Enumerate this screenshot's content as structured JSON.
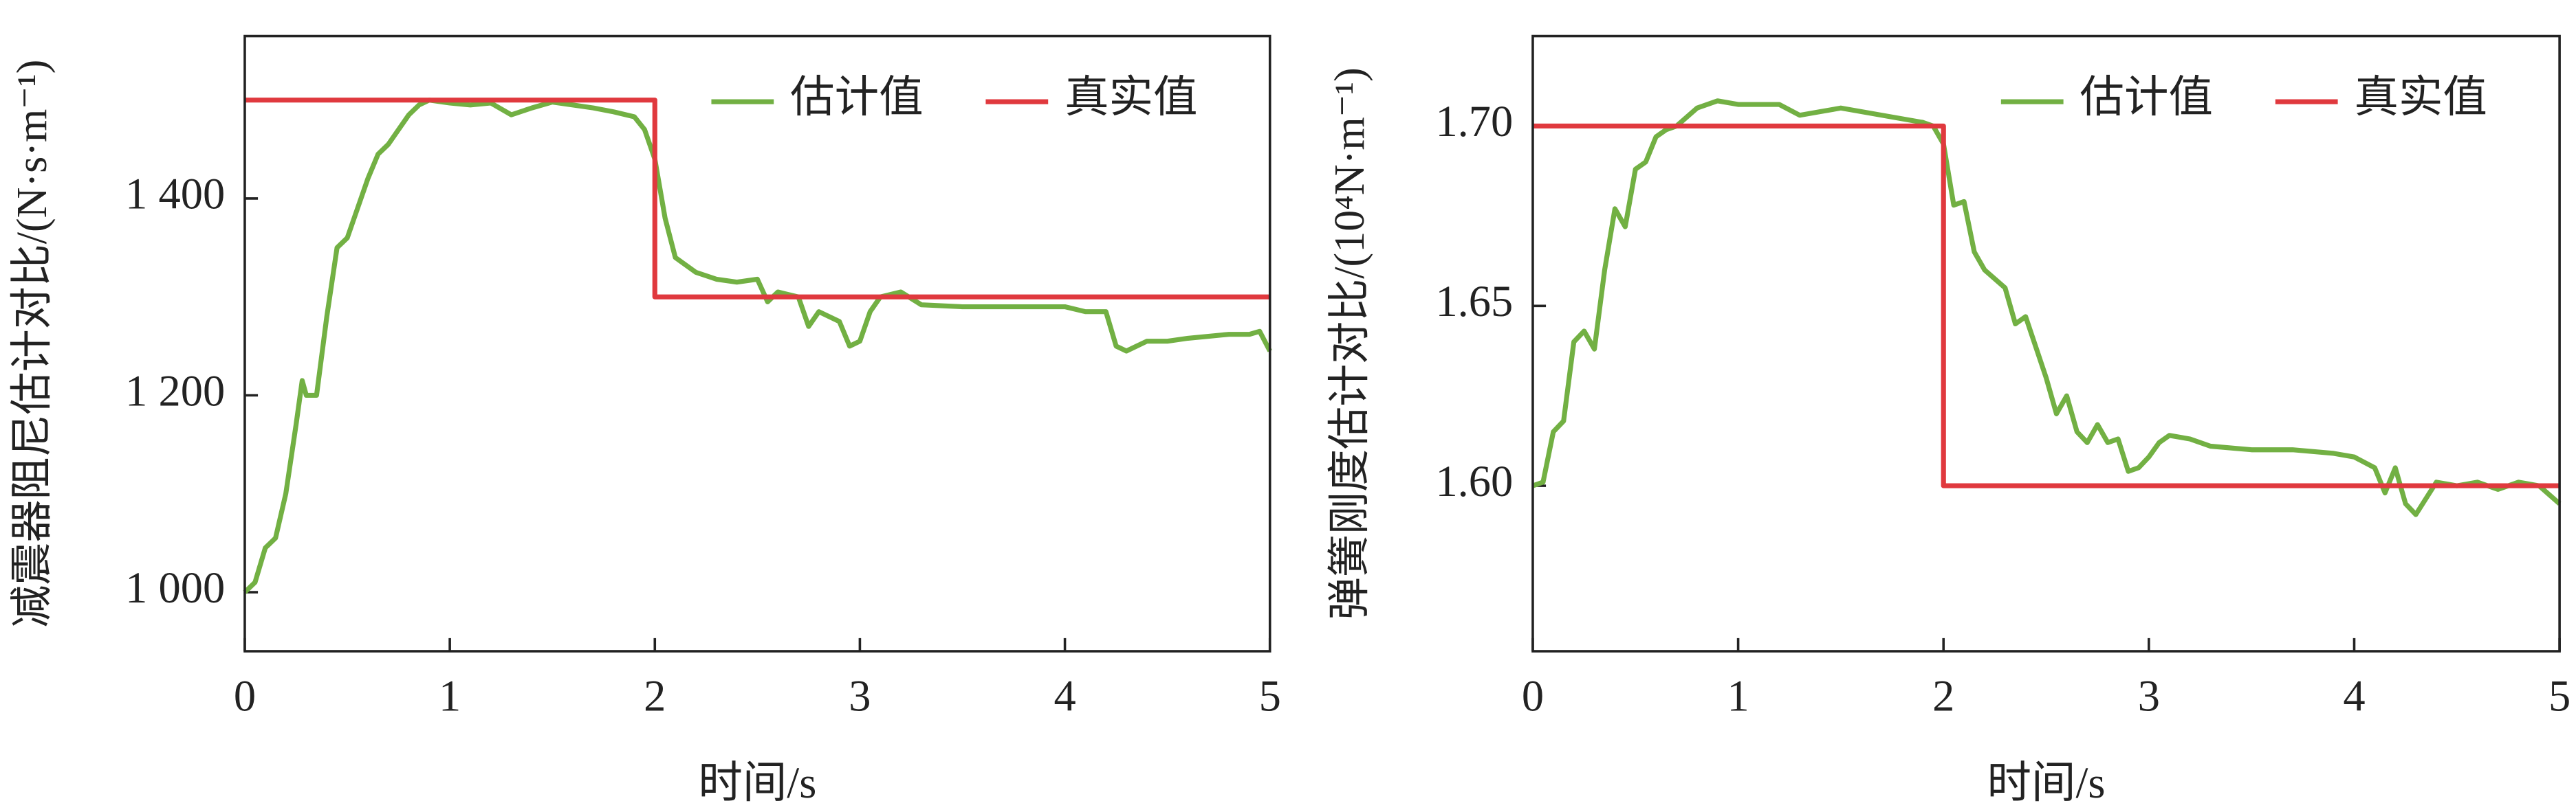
{
  "chart_data": [
    {
      "type": "line",
      "y_label": "减震器阻尼估计对比/(N·s·m⁻¹)",
      "x_label": "时间/s",
      "xlim": [
        0,
        5
      ],
      "xticks": [
        0,
        1,
        2,
        3,
        4,
        5
      ],
      "ylim": [
        940,
        1565
      ],
      "yticks": [
        {
          "value": 1000,
          "label": "1 000"
        },
        {
          "value": 1200,
          "label": "1 200"
        },
        {
          "value": 1400,
          "label": "1 400"
        }
      ],
      "series": [
        {
          "name": "估计值",
          "color": "#72b043",
          "x": [
            0,
            0.05,
            0.1,
            0.15,
            0.2,
            0.25,
            0.28,
            0.3,
            0.35,
            0.4,
            0.45,
            0.5,
            0.55,
            0.6,
            0.65,
            0.7,
            0.75,
            0.8,
            0.85,
            0.9,
            1.0,
            1.1,
            1.2,
            1.3,
            1.4,
            1.5,
            1.6,
            1.7,
            1.8,
            1.9,
            1.95,
            2.0,
            2.05,
            2.1,
            2.2,
            2.3,
            2.4,
            2.5,
            2.55,
            2.6,
            2.7,
            2.75,
            2.8,
            2.9,
            2.95,
            3.0,
            3.05,
            3.1,
            3.2,
            3.3,
            3.5,
            3.7,
            3.9,
            4.0,
            4.1,
            4.2,
            4.25,
            4.3,
            4.4,
            4.5,
            4.6,
            4.7,
            4.8,
            4.9,
            4.95,
            5.0
          ],
          "values": [
            1000,
            1010,
            1045,
            1055,
            1100,
            1170,
            1215,
            1200,
            1200,
            1280,
            1350,
            1360,
            1390,
            1420,
            1445,
            1455,
            1470,
            1485,
            1495,
            1500,
            1497,
            1495,
            1497,
            1485,
            1492,
            1498,
            1495,
            1492,
            1488,
            1483,
            1470,
            1440,
            1380,
            1340,
            1325,
            1318,
            1315,
            1318,
            1295,
            1305,
            1300,
            1270,
            1285,
            1275,
            1250,
            1255,
            1285,
            1300,
            1305,
            1292,
            1290,
            1290,
            1290,
            1290,
            1285,
            1285,
            1250,
            1245,
            1255,
            1255,
            1258,
            1260,
            1262,
            1262,
            1265,
            1245
          ]
        },
        {
          "name": "真实值",
          "color": "#e0393e",
          "x": [
            0,
            2,
            2,
            5
          ],
          "values": [
            1500,
            1500,
            1300,
            1300
          ]
        }
      ]
    },
    {
      "type": "line",
      "y_label": "弹簧刚度估计对比/(10⁴N·m⁻¹)",
      "x_label": "时间/s",
      "xlim": [
        0,
        5
      ],
      "xticks": [
        0,
        1,
        2,
        3,
        4,
        5
      ],
      "ylim": [
        1.554,
        1.725
      ],
      "yticks": [
        {
          "value": 1.6,
          "label": "1.60"
        },
        {
          "value": 1.65,
          "label": "1.65"
        },
        {
          "value": 1.7,
          "label": "1.70"
        }
      ],
      "series": [
        {
          "name": "估计值",
          "color": "#72b043",
          "x": [
            0,
            0.05,
            0.1,
            0.15,
            0.2,
            0.25,
            0.3,
            0.35,
            0.4,
            0.45,
            0.5,
            0.55,
            0.6,
            0.65,
            0.7,
            0.8,
            0.9,
            1.0,
            1.2,
            1.3,
            1.4,
            1.5,
            1.7,
            1.8,
            1.9,
            1.95,
            2.0,
            2.05,
            2.1,
            2.15,
            2.2,
            2.3,
            2.35,
            2.4,
            2.5,
            2.55,
            2.6,
            2.65,
            2.7,
            2.75,
            2.8,
            2.85,
            2.9,
            2.95,
            3.0,
            3.05,
            3.1,
            3.2,
            3.3,
            3.5,
            3.7,
            3.9,
            4.0,
            4.1,
            4.15,
            4.2,
            4.25,
            4.3,
            4.4,
            4.5,
            4.6,
            4.7,
            4.8,
            4.9,
            5.0
          ],
          "values": [
            1.6,
            1.601,
            1.615,
            1.618,
            1.64,
            1.643,
            1.638,
            1.66,
            1.677,
            1.672,
            1.688,
            1.69,
            1.697,
            1.699,
            1.7,
            1.705,
            1.707,
            1.706,
            1.706,
            1.703,
            1.704,
            1.705,
            1.703,
            1.702,
            1.701,
            1.7,
            1.695,
            1.678,
            1.679,
            1.665,
            1.66,
            1.655,
            1.645,
            1.647,
            1.63,
            1.62,
            1.625,
            1.615,
            1.612,
            1.617,
            1.612,
            1.613,
            1.604,
            1.605,
            1.608,
            1.612,
            1.614,
            1.613,
            1.611,
            1.61,
            1.61,
            1.609,
            1.608,
            1.605,
            1.598,
            1.605,
            1.595,
            1.592,
            1.601,
            1.6,
            1.601,
            1.599,
            1.601,
            1.6,
            1.595
          ]
        },
        {
          "name": "真实值",
          "color": "#e0393e",
          "x": [
            0,
            2,
            2,
            5
          ],
          "values": [
            1.7,
            1.7,
            1.6,
            1.6
          ]
        }
      ]
    }
  ]
}
